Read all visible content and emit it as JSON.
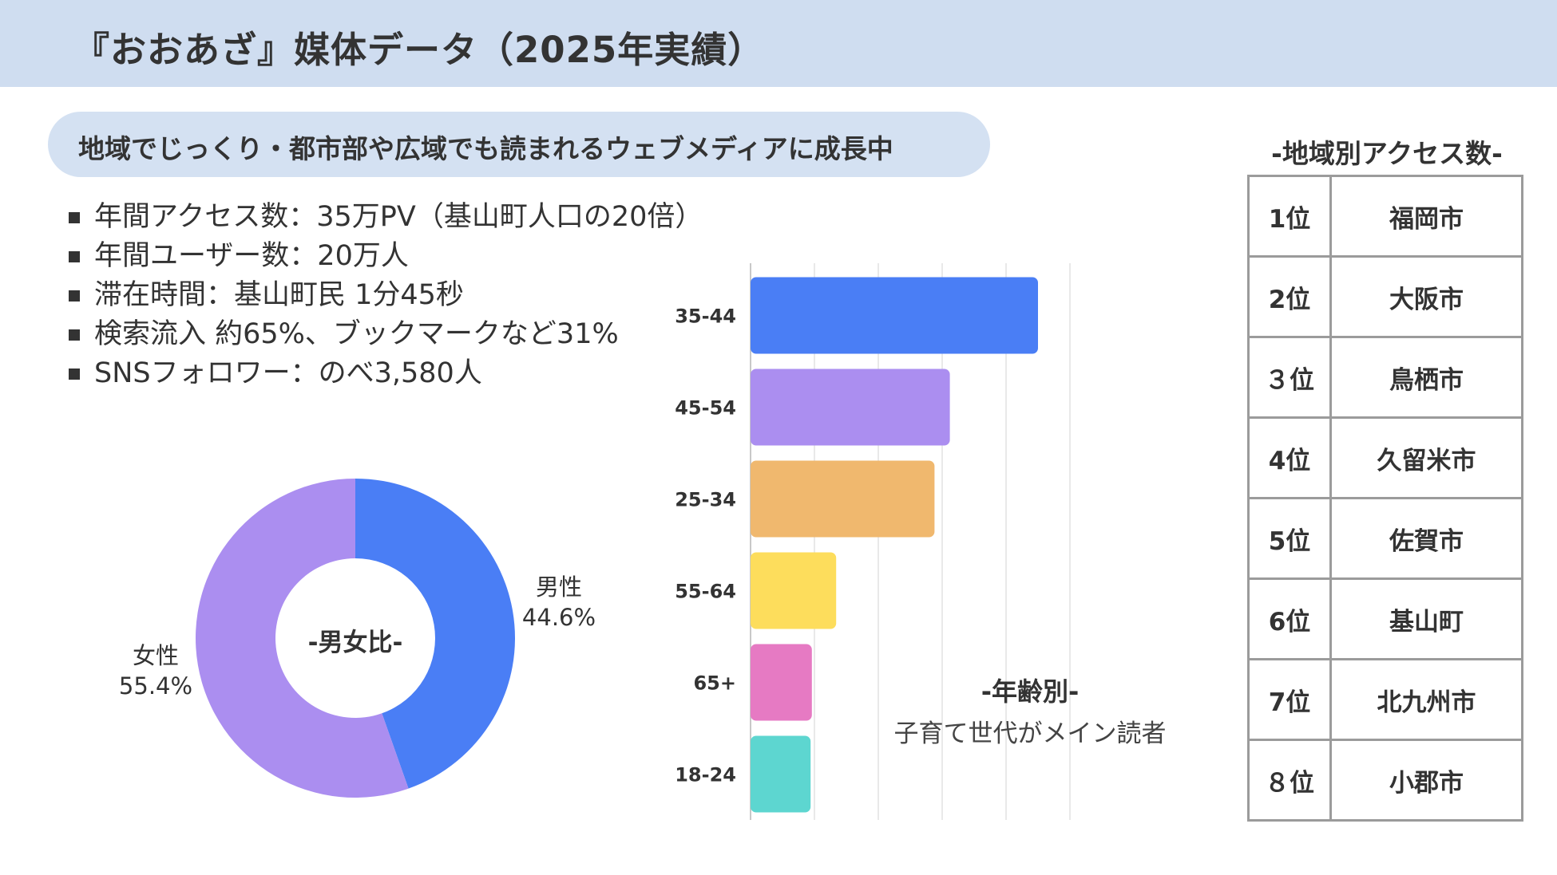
{
  "header": {
    "title": "『おおあざ』媒体データ（2025年実績）"
  },
  "subtitle_pill": "地域でじっくり・都市部や広域でも読まれるウェブメディアに成長中",
  "bullets": [
    "年間アクセス数：35万PV（基山町人口の20倍）",
    "年間ユーザー数：20万人",
    "滞在時間：基山町民 1分45秒",
    "検索流入 約65%、ブックマークなど31%",
    "SNSフォロワー：のべ3,580人"
  ],
  "chart_data": [
    {
      "type": "pie",
      "title": "-男女比-",
      "donut": true,
      "slices": [
        {
          "label": "男性",
          "value": 44.6,
          "value_label": "44.6%",
          "color": "#4a7ef5"
        },
        {
          "label": "女性",
          "value": 55.4,
          "value_label": "55.4%",
          "color": "#ab8ef0"
        }
      ]
    },
    {
      "type": "bar",
      "orientation": "horizontal",
      "title": "-年齢別-",
      "subtitle": "子育て世代がメイン読者",
      "categories": [
        "35-44",
        "45-54",
        "25-34",
        "55-64",
        "65+",
        "18-24"
      ],
      "values": [
        22500,
        15600,
        14400,
        6700,
        4800,
        4700
      ],
      "colors": [
        "#4a7ef5",
        "#ab8ef0",
        "#f0b86e",
        "#fddd5c",
        "#e67ac3",
        "#5dd6d0"
      ],
      "xlim": [
        0,
        25000
      ],
      "xticks": [
        "0",
        "5,000",
        "10,000",
        "15,000",
        "20,000",
        "25,000"
      ],
      "grid": true
    }
  ],
  "ranking": {
    "title": "-地域別アクセス数-",
    "rows": [
      {
        "rank": "1位",
        "city": "福岡市"
      },
      {
        "rank": "2位",
        "city": "大阪市"
      },
      {
        "rank": "３位",
        "city": "鳥栖市"
      },
      {
        "rank": "4位",
        "city": "久留米市"
      },
      {
        "rank": "5位",
        "city": "佐賀市"
      },
      {
        "rank": "6位",
        "city": "基山町"
      },
      {
        "rank": "7位",
        "city": "北九州市"
      },
      {
        "rank": "８位",
        "city": "小郡市"
      }
    ]
  }
}
